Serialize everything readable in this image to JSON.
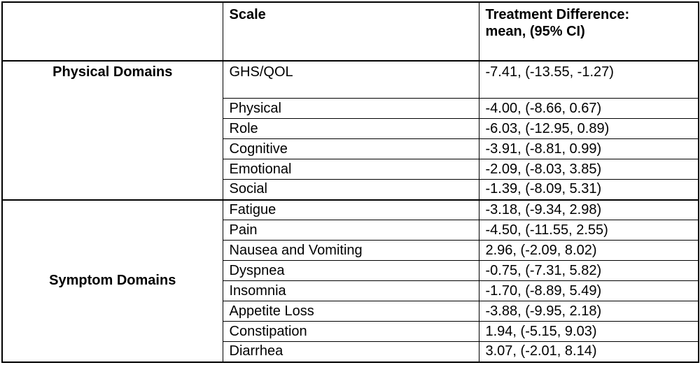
{
  "table": {
    "header": {
      "domain_col": "",
      "scale": "Scale",
      "treatment_line1": "Treatment Difference:",
      "treatment_line2": "mean, (95% CI)"
    },
    "groups": [
      {
        "label": "Physical Domains",
        "rows": [
          {
            "scale": "GHS/QOL",
            "value": "-7.41, (-13.55, -1.27)"
          },
          {
            "scale": "Physical",
            "value": "-4.00, (-8.66, 0.67)"
          },
          {
            "scale": "Role",
            "value": "-6.03, (-12.95, 0.89)"
          },
          {
            "scale": "Cognitive",
            "value": "-3.91, (-8.81, 0.99)"
          },
          {
            "scale": "Emotional",
            "value": "-2.09, (-8.03, 3.85)"
          },
          {
            "scale": "Social",
            "value": "-1.39, (-8.09, 5.31)"
          }
        ]
      },
      {
        "label": "Symptom Domains",
        "rows": [
          {
            "scale": "Fatigue",
            "value": "-3.18, (-9.34, 2.98)"
          },
          {
            "scale": "Pain",
            "value": "-4.50, (-11.55, 2.55)"
          },
          {
            "scale": "Nausea and Vomiting",
            "value": "2.96, (-2.09, 8.02)"
          },
          {
            "scale": "Dyspnea",
            "value": "-0.75, (-7.31, 5.82)"
          },
          {
            "scale": "Insomnia",
            "value": "-1.70, (-8.89, 5.49)"
          },
          {
            "scale": "Appetite Loss",
            "value": "-3.88, (-9.95, 2.18)"
          },
          {
            "scale": "Constipation",
            "value": "1.94, (-5.15, 9.03)"
          },
          {
            "scale": "Diarrhea",
            "value": "3.07, (-2.01, 8.14)"
          }
        ]
      }
    ]
  }
}
